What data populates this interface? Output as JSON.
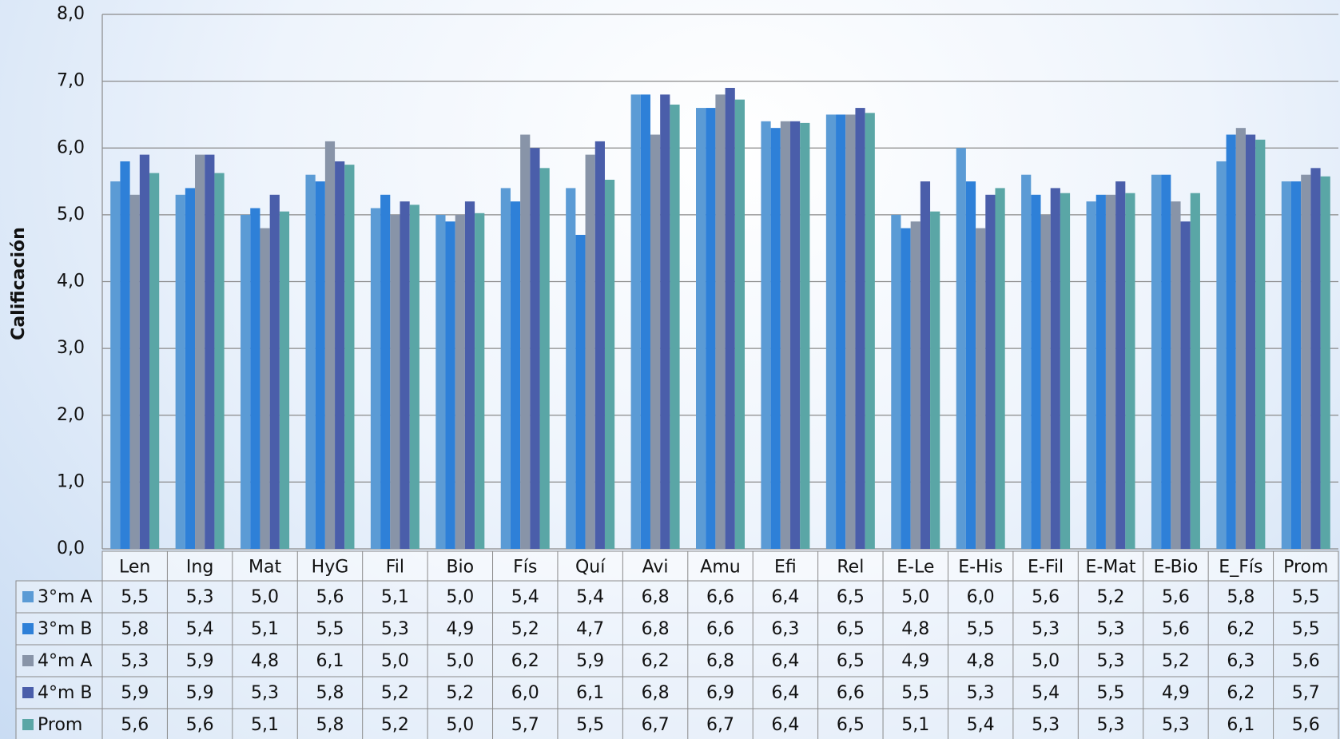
{
  "chart_data": {
    "type": "bar",
    "y_label": "Calificación",
    "categories": [
      "Len",
      "Ing",
      "Mat",
      "HyG",
      "Fil",
      "Bio",
      "Fís",
      "Quí",
      "Avi",
      "Amu",
      "Efi",
      "Rel",
      "E-Le",
      "E-His",
      "E-Fil",
      "E-Mat",
      "E-Bio",
      "E_Fís",
      "Prom"
    ],
    "series": [
      {
        "name": "3°m A",
        "color": "#5b9bd5",
        "values": [
          5.5,
          5.3,
          5.0,
          5.6,
          5.1,
          5.0,
          5.4,
          5.4,
          6.8,
          6.6,
          6.4,
          6.5,
          5.0,
          6.0,
          5.6,
          5.2,
          5.6,
          5.8,
          5.5
        ],
        "value_labels": [
          "5,5",
          "5,3",
          "5,0",
          "5,6",
          "5,1",
          "5,0",
          "5,4",
          "5,4",
          "6,8",
          "6,6",
          "6,4",
          "6,5",
          "5,0",
          "6,0",
          "5,6",
          "5,2",
          "5,6",
          "5,8",
          "5,5"
        ]
      },
      {
        "name": "3°m B",
        "color": "#2e80d8",
        "values": [
          5.8,
          5.4,
          5.1,
          5.5,
          5.3,
          4.9,
          5.2,
          4.7,
          6.8,
          6.6,
          6.3,
          6.5,
          4.8,
          5.5,
          5.3,
          5.3,
          5.6,
          6.2,
          5.5
        ],
        "value_labels": [
          "5,8",
          "5,4",
          "5,1",
          "5,5",
          "5,3",
          "4,9",
          "5,2",
          "4,7",
          "6,8",
          "6,6",
          "6,3",
          "6,5",
          "4,8",
          "5,5",
          "5,3",
          "5,3",
          "5,6",
          "6,2",
          "5,5"
        ]
      },
      {
        "name": "4°m A",
        "color": "#8894a8",
        "values": [
          5.3,
          5.9,
          4.8,
          6.1,
          5.0,
          5.0,
          6.2,
          5.9,
          6.2,
          6.8,
          6.4,
          6.5,
          4.9,
          4.8,
          5.0,
          5.3,
          5.2,
          6.3,
          5.6
        ],
        "value_labels": [
          "5,3",
          "5,9",
          "4,8",
          "6,1",
          "5,0",
          "5,0",
          "6,2",
          "5,9",
          "6,2",
          "6,8",
          "6,4",
          "6,5",
          "4,9",
          "4,8",
          "5,0",
          "5,3",
          "5,2",
          "6,3",
          "5,6"
        ]
      },
      {
        "name": "4°m B",
        "color": "#4a5eaa",
        "values": [
          5.9,
          5.9,
          5.3,
          5.8,
          5.2,
          5.2,
          6.0,
          6.1,
          6.8,
          6.9,
          6.4,
          6.6,
          5.5,
          5.3,
          5.4,
          5.5,
          4.9,
          6.2,
          5.7
        ],
        "value_labels": [
          "5,9",
          "5,9",
          "5,3",
          "5,8",
          "5,2",
          "5,2",
          "6,0",
          "6,1",
          "6,8",
          "6,9",
          "6,4",
          "6,6",
          "5,5",
          "5,3",
          "5,4",
          "5,5",
          "4,9",
          "6,2",
          "5,7"
        ]
      },
      {
        "name": "Prom",
        "color": "#5aa6a6",
        "values": [
          5.625,
          5.625,
          5.05,
          5.75,
          5.15,
          5.025,
          5.7,
          5.525,
          6.65,
          6.725,
          6.375,
          6.525,
          5.05,
          5.4,
          5.325,
          5.325,
          5.325,
          6.125,
          5.575
        ],
        "value_labels": [
          "5,6",
          "5,6",
          "5,1",
          "5,8",
          "5,2",
          "5,0",
          "5,7",
          "5,5",
          "6,7",
          "6,7",
          "6,4",
          "6,5",
          "5,1",
          "5,4",
          "5,3",
          "5,3",
          "5,3",
          "6,1",
          "5,6"
        ]
      }
    ],
    "ylim": [
      0,
      8
    ],
    "yticks": [
      {
        "value": 0,
        "label": "0,0"
      },
      {
        "value": 1,
        "label": "1,0"
      },
      {
        "value": 2,
        "label": "2,0"
      },
      {
        "value": 3,
        "label": "3,0"
      },
      {
        "value": 4,
        "label": "4,0"
      },
      {
        "value": 5,
        "label": "5,0"
      },
      {
        "value": 6,
        "label": "6,0"
      },
      {
        "value": 7,
        "label": "7,0"
      },
      {
        "value": 8,
        "label": "8,0"
      }
    ],
    "grid": true
  }
}
